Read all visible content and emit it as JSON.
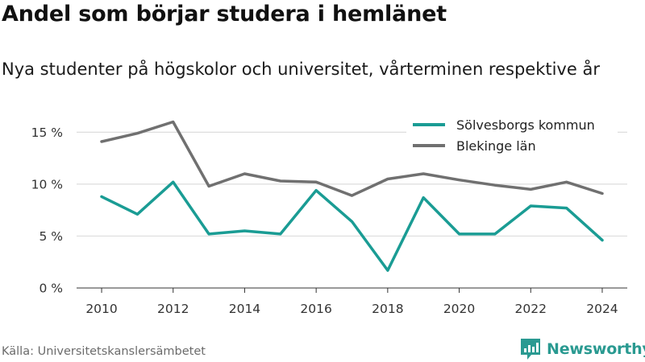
{
  "header": {
    "title": "Andel som börjar studera i hemlänet",
    "subtitle": "Nya studenter på högskolor och universitet, vårterminen respektive år"
  },
  "footer": {
    "source": "Källa: Universitetskanslersämbetet",
    "brand": "Newsworthy"
  },
  "colors": {
    "series_1": "#1a9c94",
    "series_2": "#707070",
    "grid": "#dddddd",
    "brand": "#2a9a91"
  },
  "chart_data": {
    "type": "line",
    "x": [
      2010,
      2011,
      2012,
      2013,
      2014,
      2015,
      2016,
      2017,
      2018,
      2019,
      2020,
      2021,
      2022,
      2023,
      2024
    ],
    "series": [
      {
        "name": "Sölvesborgs kommun",
        "color": "#1a9c94",
        "values": [
          8.8,
          7.1,
          10.2,
          5.2,
          5.5,
          5.2,
          9.4,
          6.4,
          1.7,
          8.7,
          5.2,
          5.2,
          7.9,
          7.7,
          4.6
        ]
      },
      {
        "name": "Blekinge län",
        "color": "#707070",
        "values": [
          14.1,
          14.9,
          16.0,
          9.8,
          11.0,
          10.3,
          10.2,
          8.9,
          10.5,
          11.0,
          10.4,
          9.9,
          9.5,
          10.2,
          9.1
        ]
      }
    ],
    "x_ticks": [
      2010,
      2012,
      2014,
      2016,
      2018,
      2020,
      2022,
      2024
    ],
    "y_ticks": [
      {
        "value": 0,
        "label": "0 %"
      },
      {
        "value": 5,
        "label": "5 %"
      },
      {
        "value": 10,
        "label": "10 %"
      },
      {
        "value": 15,
        "label": "15 %"
      }
    ],
    "ylim": [
      0,
      16.5
    ],
    "xlim": [
      2009.3,
      2024.7
    ],
    "grid": true,
    "legend_position": "top-right"
  }
}
